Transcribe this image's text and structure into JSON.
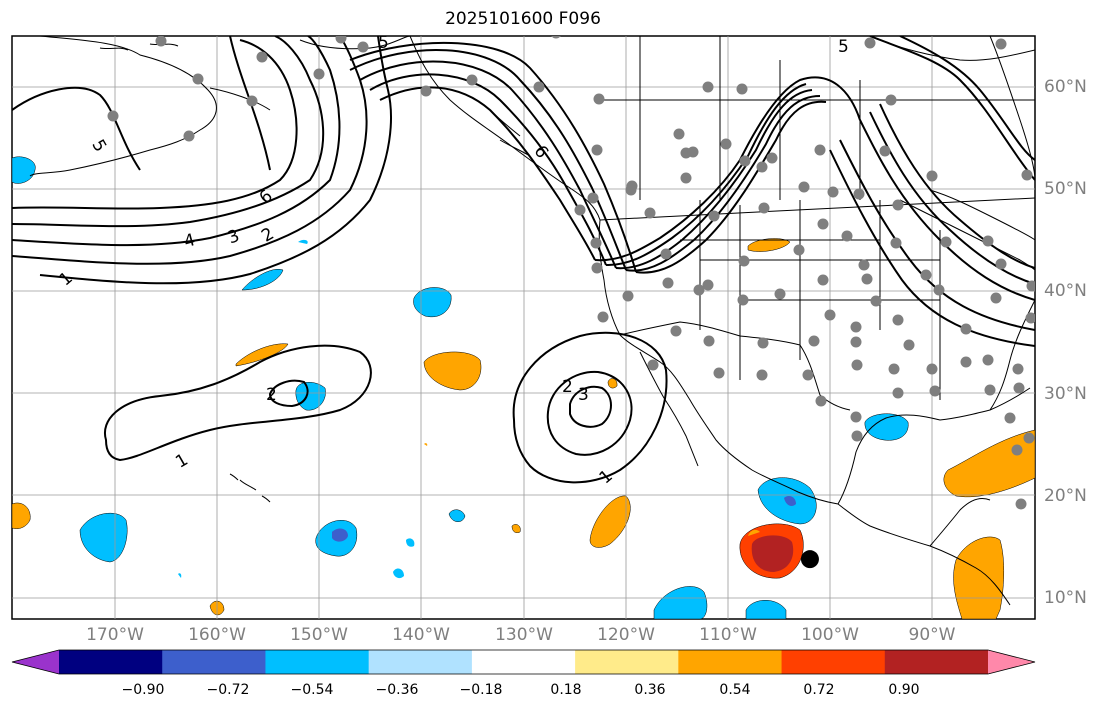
{
  "title": "2025101600 F096",
  "lat_labels": [
    {
      "text": "60°N",
      "value": 60
    },
    {
      "text": "50°N",
      "value": 50
    },
    {
      "text": "40°N",
      "value": 40
    },
    {
      "text": "30°N",
      "value": 30
    },
    {
      "text": "20°N",
      "value": 20
    },
    {
      "text": "10°N",
      "value": 10
    }
  ],
  "lon_labels": [
    {
      "text": "170°W",
      "value": -170
    },
    {
      "text": "160°W",
      "value": -160
    },
    {
      "text": "150°W",
      "value": -150
    },
    {
      "text": "140°W",
      "value": -140
    },
    {
      "text": "130°W",
      "value": -130
    },
    {
      "text": "120°W",
      "value": -120
    },
    {
      "text": "110°W",
      "value": -110
    },
    {
      "text": "100°W",
      "value": -100
    },
    {
      "text": "90°W",
      "value": -90
    }
  ],
  "colorbar": {
    "ticks": [
      "−0.90",
      "−0.72",
      "−0.54",
      "−0.36",
      "−0.18",
      "0.18",
      "0.36",
      "0.54",
      "0.72",
      "0.90"
    ],
    "colors": [
      "#9a33cc",
      "#000080",
      "#3d5fcc",
      "#00bfff",
      "#b0e2ff",
      "#ffffff",
      "#ffeb8a",
      "#ffa500",
      "#ff4000",
      "#b22222",
      "#ff88aa"
    ]
  },
  "contour_labels": [
    "1",
    "2",
    "3",
    "4",
    "5",
    "6"
  ],
  "marker": {
    "lat": 13.8,
    "lon": -102.0,
    "color": "#000000"
  }
}
